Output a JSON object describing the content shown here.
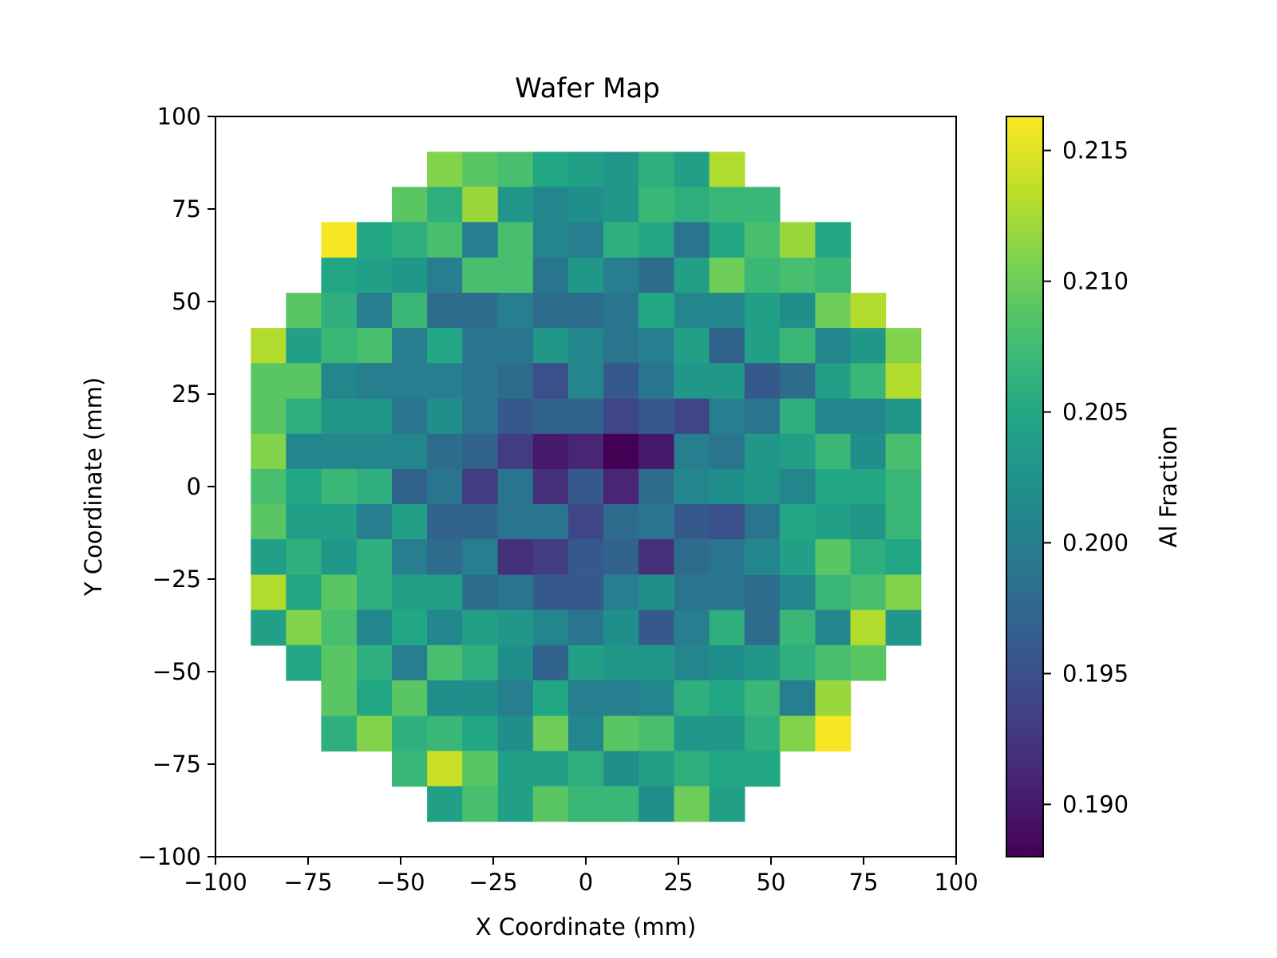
{
  "chart_data": {
    "type": "heatmap",
    "title": "Wafer Map",
    "xlabel": "X Coordinate (mm)",
    "ylabel": "Y Coordinate (mm)",
    "xlim": [
      -100,
      100
    ],
    "ylim": [
      -100,
      100
    ],
    "xticks": [
      -100,
      -75,
      -50,
      -25,
      0,
      25,
      50,
      75,
      100
    ],
    "yticks": [
      -100,
      -75,
      -50,
      -25,
      0,
      25,
      50,
      75,
      100
    ],
    "xtick_labels": [
      "−100",
      "−75",
      "−50",
      "−25",
      "0",
      "25",
      "50",
      "75",
      "100"
    ],
    "ytick_labels": [
      "−100",
      "−75",
      "−50",
      "−25",
      "0",
      "25",
      "50",
      "75",
      "100"
    ],
    "colormap": "viridis",
    "colorbar": {
      "label": "Al Fraction",
      "range": [
        0.188,
        0.2163
      ],
      "ticks": [
        0.19,
        0.195,
        0.2,
        0.205,
        0.21,
        0.215
      ],
      "tick_labels": [
        "0.190",
        "0.195",
        "0.200",
        "0.205",
        "0.210",
        "0.215"
      ]
    },
    "x_centers": [
      -85.7,
      -76.2,
      -66.7,
      -57.1,
      -47.6,
      -38.1,
      -28.6,
      -19.0,
      -9.5,
      0.0,
      9.5,
      19.0,
      28.6,
      38.1,
      47.6,
      57.1,
      66.7,
      76.2,
      85.7
    ],
    "y_centers": [
      85.7,
      76.2,
      66.7,
      57.1,
      47.6,
      38.1,
      28.6,
      19.0,
      9.5,
      0.0,
      -9.5,
      -19.0,
      -28.6,
      -38.1,
      -47.6,
      -57.1,
      -66.7,
      -76.2,
      -85.7
    ],
    "values": [
      [
        null,
        null,
        null,
        null,
        null,
        0.211,
        0.209,
        0.208,
        0.205,
        0.204,
        0.203,
        0.206,
        0.204,
        0.213,
        null,
        null,
        null,
        null,
        null
      ],
      [
        null,
        null,
        null,
        null,
        0.209,
        0.206,
        0.212,
        0.203,
        0.201,
        0.202,
        0.203,
        0.207,
        0.206,
        0.207,
        0.207,
        null,
        null,
        null,
        null
      ],
      [
        null,
        null,
        0.216,
        0.205,
        0.206,
        0.208,
        0.2,
        0.208,
        0.201,
        0.2,
        0.206,
        0.205,
        0.199,
        0.205,
        0.208,
        0.212,
        0.205,
        null,
        null
      ],
      [
        null,
        null,
        0.205,
        0.204,
        0.203,
        0.2,
        0.208,
        0.208,
        0.199,
        0.203,
        0.2,
        0.198,
        0.204,
        0.21,
        0.207,
        0.208,
        0.207,
        null,
        null
      ],
      [
        null,
        0.209,
        0.206,
        0.2,
        0.207,
        0.198,
        0.198,
        0.2,
        0.198,
        0.198,
        0.199,
        0.205,
        0.201,
        0.201,
        0.204,
        0.202,
        0.21,
        0.213,
        null
      ],
      [
        0.213,
        0.204,
        0.207,
        0.208,
        0.2,
        0.205,
        0.199,
        0.199,
        0.203,
        0.201,
        0.199,
        0.2,
        0.204,
        0.197,
        0.204,
        0.207,
        0.201,
        0.203,
        0.211
      ],
      [
        0.209,
        0.209,
        0.201,
        0.2,
        0.2,
        0.2,
        0.199,
        0.198,
        0.195,
        0.201,
        0.196,
        0.199,
        0.203,
        0.203,
        0.196,
        0.198,
        0.204,
        0.207,
        0.213
      ],
      [
        0.209,
        0.206,
        0.203,
        0.203,
        0.199,
        0.202,
        0.199,
        0.196,
        0.197,
        0.197,
        0.194,
        0.196,
        0.194,
        0.2,
        0.199,
        0.206,
        0.201,
        0.201,
        0.203
      ],
      [
        0.211,
        0.201,
        0.201,
        0.201,
        0.201,
        0.198,
        0.197,
        0.193,
        0.19,
        0.191,
        0.188,
        0.19,
        0.2,
        0.199,
        0.203,
        0.204,
        0.207,
        0.202,
        0.208
      ],
      [
        0.208,
        0.205,
        0.207,
        0.206,
        0.197,
        0.199,
        0.193,
        0.199,
        0.192,
        0.196,
        0.191,
        0.198,
        0.201,
        0.202,
        0.203,
        0.201,
        0.205,
        0.205,
        0.207
      ],
      [
        0.209,
        0.204,
        0.204,
        0.2,
        0.204,
        0.197,
        0.197,
        0.199,
        0.199,
        0.194,
        0.198,
        0.199,
        0.196,
        0.195,
        0.199,
        0.205,
        0.204,
        0.203,
        0.207
      ],
      [
        0.204,
        0.206,
        0.203,
        0.206,
        0.2,
        0.198,
        0.2,
        0.192,
        0.193,
        0.196,
        0.197,
        0.192,
        0.198,
        0.199,
        0.201,
        0.204,
        0.209,
        0.206,
        0.205
      ],
      [
        0.213,
        0.205,
        0.209,
        0.206,
        0.204,
        0.204,
        0.198,
        0.199,
        0.196,
        0.196,
        0.2,
        0.202,
        0.199,
        0.199,
        0.198,
        0.201,
        0.207,
        0.208,
        0.211
      ],
      [
        0.204,
        0.211,
        0.208,
        0.201,
        0.205,
        0.201,
        0.204,
        0.203,
        0.201,
        0.199,
        0.202,
        0.196,
        0.2,
        0.206,
        0.198,
        0.207,
        0.201,
        0.213,
        0.203
      ],
      [
        null,
        0.205,
        0.209,
        0.206,
        0.2,
        0.208,
        0.206,
        0.202,
        0.197,
        0.204,
        0.203,
        0.203,
        0.201,
        0.202,
        0.203,
        0.206,
        0.208,
        0.209,
        null
      ],
      [
        null,
        null,
        0.209,
        0.205,
        0.209,
        0.202,
        0.202,
        0.2,
        0.205,
        0.2,
        0.2,
        0.201,
        0.206,
        0.205,
        0.207,
        0.2,
        0.212,
        null,
        null
      ],
      [
        null,
        null,
        0.206,
        0.211,
        0.206,
        0.207,
        0.205,
        0.202,
        0.21,
        0.201,
        0.209,
        0.208,
        0.203,
        0.203,
        0.206,
        0.211,
        0.216,
        null,
        null
      ],
      [
        null,
        null,
        null,
        null,
        0.207,
        0.214,
        0.209,
        0.204,
        0.204,
        0.206,
        0.202,
        0.204,
        0.206,
        0.205,
        0.205,
        null,
        null,
        null,
        null
      ],
      [
        null,
        null,
        null,
        null,
        null,
        0.204,
        0.208,
        0.204,
        0.209,
        0.207,
        0.207,
        0.202,
        0.21,
        0.204,
        null,
        null,
        null,
        null,
        null
      ]
    ]
  }
}
